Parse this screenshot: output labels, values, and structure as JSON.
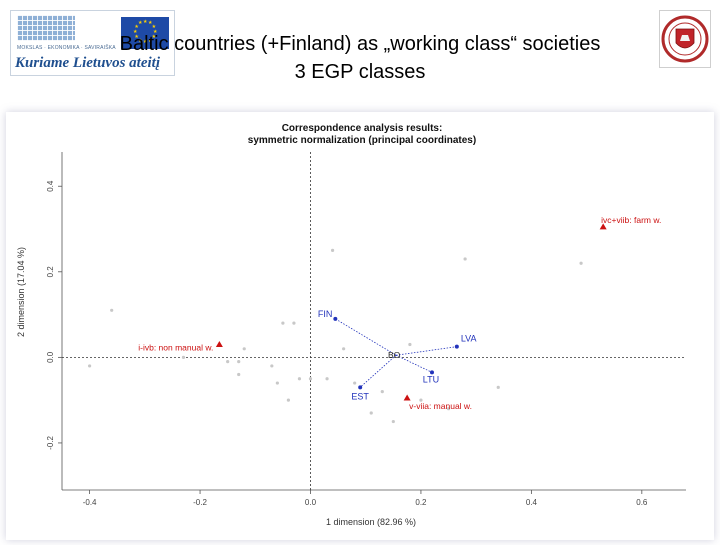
{
  "header": {
    "logo_small_text": "MOKSLAS · EKONOMIKA · SAVIRAIŠKA",
    "logo_motto": "Kuriame Lietuvos ateitį",
    "title_line1": "Baltic countries (+Finland) as „working class“ societies",
    "title_line2": "3 EGP classes"
  },
  "colors": {
    "countries": "#2233bb",
    "classes": "#cc1111",
    "background_points": "#c8c8c8",
    "reference_lines": "#333333"
  },
  "chart_data": {
    "type": "scatter",
    "title": "Correspondence analysis results:",
    "subtitle": "symmetric normalization (principal coordinates)",
    "xlabel": "1 dimension (82.96 %)",
    "ylabel": "2 dimension (17.04 %)",
    "xlim": [
      -0.45,
      0.68
    ],
    "ylim": [
      -0.31,
      0.48
    ],
    "xticks": [
      -0.4,
      -0.2,
      0.0,
      0.2,
      0.4,
      0.6
    ],
    "xtick_labels": [
      "-0.4",
      "-0.2",
      "0.0",
      "0.2",
      "0.4",
      "0.6"
    ],
    "yticks": [
      -0.2,
      0.0,
      0.2,
      0.4
    ],
    "ytick_labels": [
      "-0.2",
      "0.0",
      "0.2",
      "0.4"
    ],
    "reference_lines": {
      "x": 0,
      "y": 0
    },
    "center_label": {
      "name": "BO",
      "x": 0.155,
      "y": 0.005
    },
    "series": [
      {
        "name": "countries",
        "marker": "circle",
        "points": [
          {
            "label": "FIN",
            "x": 0.045,
            "y": 0.09
          },
          {
            "label": "LVA",
            "x": 0.265,
            "y": 0.025
          },
          {
            "label": "LTU",
            "x": 0.22,
            "y": -0.035
          },
          {
            "label": "EST",
            "x": 0.09,
            "y": -0.07
          }
        ]
      },
      {
        "name": "classes",
        "marker": "triangle",
        "points": [
          {
            "label": "i-ivb: non manual w.",
            "x": -0.165,
            "y": 0.03
          },
          {
            "label": "ivc+viib: farm w.",
            "x": 0.53,
            "y": 0.305
          },
          {
            "label": "v-viia: manual w.",
            "x": 0.175,
            "y": -0.095
          }
        ]
      }
    ],
    "background_points": [
      [
        -0.36,
        0.11
      ],
      [
        -0.05,
        0.08
      ],
      [
        -0.03,
        0.08
      ],
      [
        0.04,
        0.25
      ],
      [
        0.28,
        0.23
      ],
      [
        0.49,
        0.22
      ],
      [
        -0.12,
        0.02
      ],
      [
        -0.23,
        0.0
      ],
      [
        -0.13,
        -0.04
      ],
      [
        -0.07,
        -0.02
      ],
      [
        -0.13,
        -0.01
      ],
      [
        -0.06,
        -0.06
      ],
      [
        -0.04,
        -0.1
      ],
      [
        0.03,
        -0.05
      ],
      [
        0.08,
        -0.06
      ],
      [
        0.11,
        -0.13
      ],
      [
        0.15,
        -0.15
      ],
      [
        0.13,
        -0.08
      ],
      [
        0.2,
        -0.1
      ],
      [
        0.25,
        -0.12
      ],
      [
        0.0,
        -0.05
      ],
      [
        0.06,
        0.02
      ],
      [
        0.18,
        0.03
      ],
      [
        -0.02,
        -0.05
      ],
      [
        -0.15,
        -0.01
      ],
      [
        0.34,
        -0.07
      ],
      [
        -0.4,
        -0.02
      ]
    ]
  }
}
